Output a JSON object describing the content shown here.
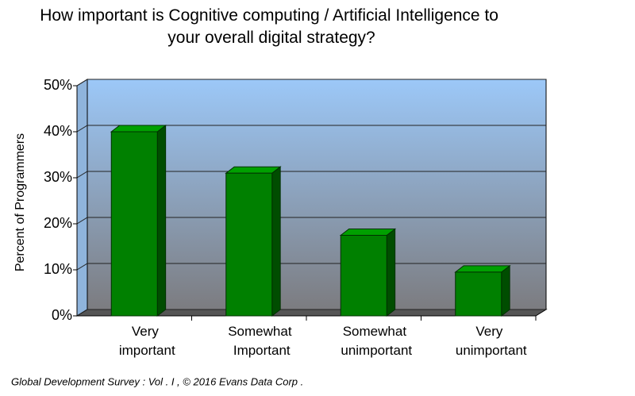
{
  "chart_data": {
    "type": "bar3d",
    "title": "How important is Cognitive computing / Artificial Intelligence to your overall digital strategy?",
    "y_label": "Percent of Programmers",
    "footer": "Global Development Survey :  Vol . I ,  © 2016  Evans Data Corp .",
    "categories": [
      "Very important",
      "Somewhat Important",
      "Somewhat unimportant",
      "Very unimportant"
    ],
    "values": [
      40,
      31,
      17.5,
      9.5
    ],
    "color": "#008000",
    "ylim": [
      0,
      50
    ],
    "yticks": [
      {
        "value": 0,
        "label": "0%"
      },
      {
        "value": 10,
        "label": "10%"
      },
      {
        "value": 20,
        "label": "20%"
      },
      {
        "value": 30,
        "label": "30%"
      },
      {
        "value": 40,
        "label": "40%"
      },
      {
        "value": 50,
        "label": "50%"
      }
    ],
    "grid": true
  }
}
